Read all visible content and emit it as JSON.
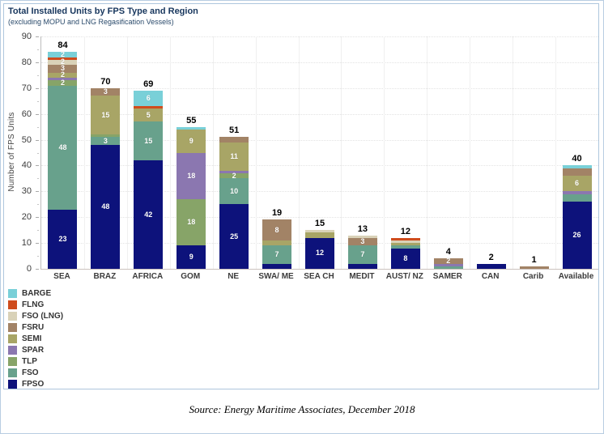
{
  "page": {
    "source": "Source: Energy Maritime Associates, December 2018"
  },
  "chart_data": {
    "type": "bar",
    "stacked": true,
    "title": "Total Installed Units by FPS Type and Region",
    "subtitle": "(excluding MOPU and LNG Regasification Vessels)",
    "ylabel": "Number of FPS Units",
    "ylim": [
      0,
      90
    ],
    "ytick_step": 10,
    "grid": "horizontal-dotted-faint",
    "legend_position": "bottom-left",
    "legend_order_top_to_bottom": [
      "BARGE",
      "FLNG",
      "FSO (LNG)",
      "FSRU",
      "SEMI",
      "SPAR",
      "TLP",
      "FSO",
      "FPSO"
    ],
    "categories": [
      "SEA",
      "BRAZ",
      "AFRICA",
      "GOM",
      "NE",
      "SWA/ ME",
      "SEA CH",
      "MEDIT",
      "AUST/ NZ",
      "SAMER",
      "CAN",
      "Carib",
      "Available"
    ],
    "totals": [
      84,
      70,
      69,
      55,
      51,
      19,
      15,
      13,
      12,
      4,
      2,
      1,
      40
    ],
    "series": [
      {
        "name": "FPSO",
        "color": "#0d127b",
        "values": [
          23,
          48,
          42,
          9,
          25,
          2,
          12,
          2,
          8,
          0,
          2,
          0,
          26
        ],
        "labels": [
          "23",
          "48",
          "42",
          "9",
          "25",
          "",
          "12",
          "",
          "8",
          "",
          "",
          "",
          "26"
        ]
      },
      {
        "name": "FSO",
        "color": "#68a18c",
        "values": [
          48,
          3,
          15,
          0,
          10,
          7,
          0,
          7,
          1,
          1,
          0,
          0,
          3
        ],
        "labels": [
          "48",
          "3",
          "15",
          "",
          "10",
          "7",
          "",
          "7",
          "",
          "",
          "",
          "",
          ""
        ]
      },
      {
        "name": "TLP",
        "color": "#87a468",
        "values": [
          2,
          1,
          0,
          18,
          2,
          0,
          0,
          0,
          0,
          0,
          0,
          0,
          0
        ],
        "labels": [
          "2",
          "",
          "",
          "18",
          "2",
          "",
          "",
          "",
          "",
          "",
          "",
          "",
          ""
        ]
      },
      {
        "name": "SPAR",
        "color": "#8b77b0",
        "values": [
          1,
          0,
          0,
          18,
          1,
          0,
          0,
          0,
          0,
          1,
          0,
          0,
          1
        ],
        "labels": [
          "",
          "",
          "",
          "18",
          "",
          "",
          "",
          "",
          "",
          "",
          "",
          "",
          ""
        ]
      },
      {
        "name": "SEMI",
        "color": "#a8a566",
        "values": [
          2,
          15,
          5,
          9,
          11,
          2,
          2,
          0,
          1,
          0,
          0,
          0,
          6
        ],
        "labels": [
          "2",
          "15",
          "5",
          "9",
          "11",
          "",
          "",
          "",
          "",
          "",
          "",
          "",
          "6"
        ]
      },
      {
        "name": "FSRU",
        "color": "#a28366",
        "values": [
          3,
          3,
          0,
          0,
          2,
          8,
          0,
          3,
          0,
          2,
          0,
          1,
          3
        ],
        "labels": [
          "3",
          "3",
          "",
          "",
          "",
          "8",
          "",
          "3",
          "",
          "2",
          "",
          "",
          ""
        ]
      },
      {
        "name": "FSO (LNG)",
        "color": "#d9d2b8",
        "values": [
          2,
          0,
          0,
          0,
          0,
          0,
          1,
          1,
          1,
          0,
          0,
          0,
          0
        ],
        "labels": [
          "2",
          "",
          "",
          "",
          "",
          "",
          "",
          "",
          "",
          "",
          "",
          "",
          ""
        ]
      },
      {
        "name": "FLNG",
        "color": "#cf4c1d",
        "values": [
          1,
          0,
          1,
          0,
          0,
          0,
          0,
          0,
          1,
          0,
          0,
          0,
          0
        ],
        "labels": [
          "",
          "",
          "",
          "",
          "",
          "",
          "",
          "",
          "",
          "",
          "",
          "",
          ""
        ]
      },
      {
        "name": "BARGE",
        "color": "#79d0d8",
        "values": [
          2,
          0,
          6,
          1,
          0,
          0,
          0,
          0,
          0,
          0,
          0,
          0,
          1
        ],
        "labels": [
          "2",
          "",
          "6",
          "",
          "",
          "",
          "",
          "",
          "",
          "",
          "",
          "",
          ""
        ]
      }
    ]
  }
}
